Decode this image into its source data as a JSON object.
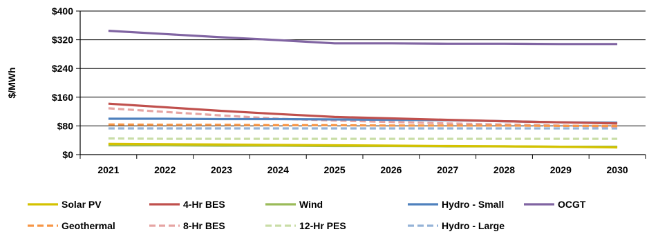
{
  "chart_data": {
    "type": "line",
    "title": "",
    "xlabel": "",
    "ylabel": "$/MWh",
    "x": [
      2021,
      2022,
      2023,
      2024,
      2025,
      2026,
      2027,
      2028,
      2029,
      2030
    ],
    "ylim": [
      0,
      400
    ],
    "yticks": [
      0,
      80,
      160,
      240,
      320,
      400
    ],
    "ytick_labels": [
      "$0",
      "$80",
      "$160",
      "$240",
      "$320",
      "$400"
    ],
    "grid": "horizontal",
    "legend_position": "bottom",
    "series": [
      {
        "name": "Solar PV",
        "color": "#d4c200",
        "dash": "solid",
        "values": [
          30,
          29,
          28,
          27,
          26,
          25,
          24,
          23,
          22,
          20
        ]
      },
      {
        "name": "4-Hr BES",
        "color": "#c0504d",
        "dash": "solid",
        "values": [
          142,
          132,
          122,
          113,
          105,
          101,
          97,
          93,
          90,
          87
        ]
      },
      {
        "name": "Wind",
        "color": "#9bbb59",
        "dash": "solid",
        "values": [
          26,
          26,
          25,
          25,
          24,
          24,
          23,
          23,
          22,
          22
        ]
      },
      {
        "name": "Hydro - Small",
        "color": "#4f81bd",
        "dash": "solid",
        "values": [
          100,
          100,
          99,
          99,
          98,
          97,
          96,
          93,
          90,
          89
        ]
      },
      {
        "name": "OCGT",
        "color": "#8064a2",
        "dash": "solid",
        "values": [
          345,
          336,
          327,
          319,
          310,
          310,
          309,
          309,
          308,
          308
        ]
      },
      {
        "name": "Geothermal",
        "color": "#f79646",
        "dash": "dashed",
        "values": [
          84,
          83,
          83,
          82,
          82,
          81,
          81,
          81,
          80,
          80
        ]
      },
      {
        "name": "8-Hr BES",
        "color": "#e6a5a3",
        "dash": "dashed",
        "values": [
          129,
          119,
          109,
          100,
          95,
          91,
          87,
          84,
          81,
          78
        ]
      },
      {
        "name": "12-Hr PES",
        "color": "#c9dda7",
        "dash": "dashed",
        "values": [
          45,
          44,
          44,
          44,
          44,
          44,
          44,
          44,
          44,
          44
        ]
      },
      {
        "name": "Hydro - Large",
        "color": "#95b3d7",
        "dash": "dashed",
        "values": [
          73,
          73,
          73,
          73,
          73,
          73,
          73,
          73,
          73,
          73
        ]
      }
    ]
  }
}
